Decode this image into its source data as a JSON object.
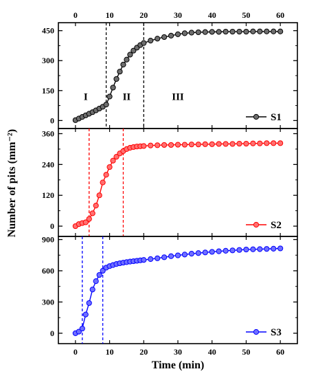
{
  "chart_data": {
    "type": "line",
    "x_unit": "min",
    "xlabel": "Time (min)",
    "ylabel": "Number of pits (mm⁻²)",
    "xlim": [
      -5,
      65
    ],
    "x_ticks": [
      0,
      10,
      20,
      30,
      40,
      50,
      60
    ],
    "x_tick_labels": [
      "0",
      "10",
      "20",
      "30",
      "40",
      "50",
      "60"
    ],
    "panels": [
      {
        "legend": "S1",
        "color": "#000000",
        "marker_fill": "#6e6e6e",
        "ylim": [
          -40,
          490
        ],
        "y_ticks": [
          0,
          150,
          300,
          450
        ],
        "y_tick_labels": [
          "0",
          "150",
          "300",
          "450"
        ],
        "vlines": [
          9,
          20
        ],
        "vline_color": "#000000",
        "region_labels": [
          {
            "text": "I",
            "x": 3,
            "y": 120
          },
          {
            "text": "II",
            "x": 15,
            "y": 120
          },
          {
            "text": "III",
            "x": 30,
            "y": 120
          }
        ],
        "x": [
          0,
          1,
          2,
          3,
          4,
          5,
          6,
          7,
          8,
          9,
          10,
          11,
          12,
          13,
          14,
          15,
          16,
          17,
          18,
          19,
          20,
          22,
          24,
          26,
          28,
          30,
          32,
          34,
          36,
          38,
          40,
          42,
          44,
          46,
          48,
          50,
          52,
          54,
          56,
          58,
          60
        ],
        "y": [
          2,
          10,
          18,
          26,
          34,
          42,
          51,
          60,
          69,
          80,
          120,
          165,
          208,
          245,
          280,
          305,
          330,
          350,
          365,
          378,
          388,
          400,
          410,
          418,
          425,
          432,
          437,
          440,
          442,
          443,
          444,
          444,
          445,
          445,
          445,
          445,
          446,
          446,
          446,
          446,
          446
        ]
      },
      {
        "legend": "S2",
        "color": "#ff0000",
        "marker_fill": "#ff7070",
        "ylim": [
          -40,
          380
        ],
        "y_ticks": [
          0,
          120,
          240,
          360
        ],
        "y_tick_labels": [
          "0",
          "120",
          "240",
          "360"
        ],
        "vlines": [
          4,
          14
        ],
        "vline_color": "#ff0000",
        "x": [
          0,
          1,
          2,
          3,
          4,
          5,
          6,
          7,
          8,
          9,
          10,
          11,
          12,
          13,
          14,
          15,
          16,
          17,
          18,
          19,
          20,
          22,
          24,
          26,
          28,
          30,
          32,
          34,
          36,
          38,
          40,
          42,
          44,
          46,
          48,
          50,
          52,
          54,
          56,
          58,
          60
        ],
        "y": [
          0,
          8,
          12,
          15,
          28,
          50,
          80,
          120,
          170,
          200,
          230,
          255,
          270,
          283,
          292,
          300,
          305,
          308,
          310,
          311,
          312,
          314,
          315,
          316,
          316,
          317,
          317,
          318,
          318,
          319,
          319,
          320,
          320,
          320,
          321,
          321,
          322,
          322,
          323,
          323,
          323
        ]
      },
      {
        "legend": "S3",
        "color": "#0000ff",
        "marker_fill": "#6f6fff",
        "ylim": [
          -100,
          930
        ],
        "y_ticks": [
          0,
          300,
          600,
          900
        ],
        "y_tick_labels": [
          "0",
          "300",
          "600",
          "900"
        ],
        "vlines": [
          2,
          8
        ],
        "vline_color": "#0000ff",
        "x": [
          0,
          1,
          2,
          3,
          4,
          5,
          6,
          7,
          8,
          9,
          10,
          11,
          12,
          13,
          14,
          15,
          16,
          17,
          18,
          19,
          20,
          22,
          24,
          26,
          28,
          30,
          32,
          34,
          36,
          38,
          40,
          42,
          44,
          46,
          48,
          50,
          52,
          54,
          56,
          58,
          60
        ],
        "y": [
          0,
          15,
          45,
          180,
          290,
          420,
          500,
          560,
          600,
          630,
          645,
          655,
          665,
          672,
          678,
          683,
          688,
          692,
          696,
          700,
          704,
          712,
          720,
          730,
          740,
          748,
          756,
          764,
          770,
          776,
          782,
          787,
          792,
          796,
          800,
          804,
          806,
          808,
          810,
          812,
          815
        ]
      }
    ]
  }
}
